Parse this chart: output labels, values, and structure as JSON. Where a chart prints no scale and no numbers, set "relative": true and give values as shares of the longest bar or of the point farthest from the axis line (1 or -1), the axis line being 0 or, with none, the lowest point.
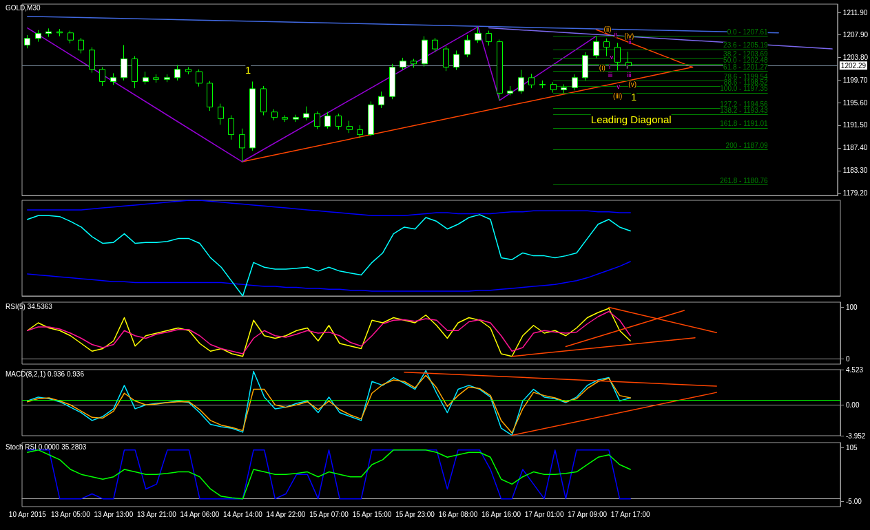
{
  "chart_data": [
    {
      "type": "candlestick",
      "title": "GOLD,M30",
      "tick_labels": "y",
      "ylim": [
        1178.8,
        1213.4
      ],
      "yticks": [
        {
          "value": 1179.2,
          "label": "1179.20"
        },
        {
          "value": 1183.3,
          "label": "1183.30"
        },
        {
          "value": 1187.4,
          "label": "1187.40"
        },
        {
          "value": 1191.5,
          "label": "1191.50"
        },
        {
          "value": 1195.6,
          "label": "1195.60"
        },
        {
          "value": 1199.7,
          "label": "1199.70"
        },
        {
          "value": 1203.8,
          "label": "1203.80"
        },
        {
          "value": 1207.9,
          "label": "1207.90"
        },
        {
          "value": 1211.9,
          "label": "1211.90"
        }
      ],
      "ohlc": [
        [
          1206.0,
          1207.8,
          1205.4,
          1207.2
        ],
        [
          1207.2,
          1208.7,
          1206.6,
          1208.1
        ],
        [
          1208.1,
          1209.0,
          1207.5,
          1208.4
        ],
        [
          1208.4,
          1208.9,
          1207.6,
          1208.2
        ],
        [
          1208.2,
          1208.6,
          1206.3,
          1206.9
        ],
        [
          1206.9,
          1207.3,
          1204.5,
          1205.1
        ],
        [
          1205.1,
          1205.6,
          1201.0,
          1201.6
        ],
        [
          1201.6,
          1202.0,
          1198.6,
          1199.4
        ],
        [
          1199.4,
          1200.9,
          1198.8,
          1200.1
        ],
        [
          1200.1,
          1206.0,
          1199.6,
          1203.5
        ],
        [
          1203.5,
          1204.0,
          1198.2,
          1199.4
        ],
        [
          1199.4,
          1201.2,
          1198.9,
          1200.1
        ],
        [
          1200.1,
          1200.7,
          1199.2,
          1199.8
        ],
        [
          1199.8,
          1200.7,
          1199.3,
          1200.1
        ],
        [
          1200.1,
          1202.4,
          1199.6,
          1201.6
        ],
        [
          1201.6,
          1202.0,
          1200.7,
          1201.2
        ],
        [
          1201.2,
          1201.6,
          1198.5,
          1199.1
        ],
        [
          1199.1,
          1199.5,
          1194.1,
          1194.8
        ],
        [
          1194.8,
          1195.4,
          1191.6,
          1192.7
        ],
        [
          1192.7,
          1193.3,
          1188.9,
          1189.8
        ],
        [
          1189.8,
          1190.9,
          1184.9,
          1187.4
        ],
        [
          1187.4,
          1199.4,
          1186.9,
          1198.1
        ],
        [
          1198.1,
          1198.6,
          1193.3,
          1193.9
        ],
        [
          1193.9,
          1194.4,
          1192.4,
          1192.9
        ],
        [
          1192.9,
          1193.3,
          1192.1,
          1192.6
        ],
        [
          1192.6,
          1193.4,
          1192.1,
          1192.9
        ],
        [
          1192.9,
          1194.9,
          1192.4,
          1193.6
        ],
        [
          1193.6,
          1194.0,
          1190.8,
          1191.3
        ],
        [
          1191.3,
          1193.9,
          1190.9,
          1193.2
        ],
        [
          1193.2,
          1193.6,
          1190.7,
          1191.3
        ],
        [
          1191.3,
          1192.3,
          1190.1,
          1190.7
        ],
        [
          1190.7,
          1191.5,
          1189.2,
          1189.8
        ],
        [
          1189.8,
          1195.8,
          1189.5,
          1195.2
        ],
        [
          1195.2,
          1197.6,
          1194.6,
          1196.7
        ],
        [
          1196.7,
          1202.6,
          1196.2,
          1202.0
        ],
        [
          1202.0,
          1203.7,
          1201.5,
          1203.1
        ],
        [
          1203.1,
          1203.5,
          1201.9,
          1202.6
        ],
        [
          1202.6,
          1207.6,
          1202.1,
          1206.9
        ],
        [
          1206.9,
          1207.3,
          1204.7,
          1205.3
        ],
        [
          1205.3,
          1205.8,
          1201.3,
          1202.0
        ],
        [
          1202.0,
          1205.0,
          1201.5,
          1204.3
        ],
        [
          1204.3,
          1207.8,
          1203.8,
          1206.9
        ],
        [
          1206.9,
          1209.3,
          1206.4,
          1208.1
        ],
        [
          1208.1,
          1208.6,
          1205.9,
          1206.6
        ],
        [
          1206.6,
          1207.0,
          1196.0,
          1197.3
        ],
        [
          1197.3,
          1198.6,
          1196.9,
          1197.7
        ],
        [
          1197.7,
          1201.5,
          1197.2,
          1200.1
        ],
        [
          1200.1,
          1200.8,
          1198.2,
          1198.8
        ],
        [
          1198.8,
          1199.6,
          1198.2,
          1198.9
        ],
        [
          1198.9,
          1199.3,
          1197.4,
          1197.9
        ],
        [
          1197.9,
          1198.9,
          1197.3,
          1198.3
        ],
        [
          1198.3,
          1200.7,
          1197.8,
          1200.1
        ],
        [
          1200.1,
          1204.7,
          1199.6,
          1204.1
        ],
        [
          1204.1,
          1207.6,
          1203.6,
          1206.6
        ],
        [
          1206.6,
          1207.2,
          1204.0,
          1205.6
        ],
        [
          1205.6,
          1206.4,
          1201.4,
          1202.9
        ],
        [
          1202.9,
          1204.8,
          1201.8,
          1202.3
        ],
        null,
        null,
        null,
        null,
        null,
        null,
        null,
        null,
        null,
        null,
        null,
        null,
        null,
        null,
        null,
        null,
        null,
        null,
        null
      ],
      "series": [
        {
          "type": "line",
          "color": "#ff4500",
          "values": [
            null,
            null,
            null,
            null,
            null,
            null,
            null,
            null,
            null,
            null,
            null,
            null,
            null,
            null,
            null,
            null,
            null,
            null,
            null,
            null,
            1184.9,
            null,
            null,
            null,
            null,
            null,
            null,
            null,
            null,
            null,
            null,
            null,
            null,
            null,
            null,
            null,
            null,
            null,
            null,
            null,
            null,
            null,
            null,
            null,
            null,
            null,
            null,
            null,
            null,
            null,
            null,
            null,
            null,
            null,
            null,
            null,
            null,
            null,
            null,
            null,
            null,
            null,
            1202.0,
            null,
            null,
            null,
            null,
            null,
            null,
            null,
            null,
            null,
            null,
            null,
            null,
            null
          ]
        },
        {
          "type": "line",
          "color": "#ff4500",
          "values": [
            null,
            null,
            null,
            null,
            null,
            null,
            null,
            null,
            null,
            null,
            null,
            null,
            null,
            null,
            null,
            null,
            null,
            null,
            null,
            null,
            null,
            null,
            null,
            null,
            null,
            null,
            null,
            null,
            null,
            null,
            null,
            null,
            null,
            null,
            null,
            null,
            null,
            null,
            null,
            null,
            null,
            null,
            null,
            null,
            null,
            null,
            null,
            null,
            null,
            null,
            null,
            null,
            null,
            1208.8,
            null,
            null,
            null,
            null,
            null,
            null,
            null,
            null,
            1202.0,
            null,
            null,
            null,
            null,
            null,
            null,
            null,
            null,
            null,
            null,
            null,
            null,
            null
          ]
        },
        {
          "type": "line",
          "color": "#4169e1",
          "values": [
            1211.2,
            null,
            null,
            null,
            null,
            null,
            null,
            null,
            null,
            null,
            null,
            null,
            null,
            null,
            null,
            null,
            null,
            null,
            null,
            null,
            null,
            null,
            null,
            null,
            null,
            null,
            null,
            null,
            null,
            null,
            null,
            null,
            null,
            null,
            null,
            null,
            null,
            null,
            null,
            null,
            null,
            null,
            null,
            null,
            null,
            null,
            null,
            null,
            null,
            null,
            null,
            null,
            null,
            null,
            null,
            null,
            null,
            null,
            null,
            null,
            null,
            null,
            null,
            null,
            null,
            null,
            null,
            null,
            null,
            null,
            1208.2,
            null,
            null,
            null,
            null,
            null
          ]
        },
        {
          "type": "line",
          "color": "#7b68ee",
          "values": [
            null,
            null,
            null,
            null,
            null,
            null,
            null,
            null,
            null,
            null,
            null,
            null,
            null,
            null,
            null,
            null,
            null,
            null,
            null,
            null,
            null,
            null,
            null,
            null,
            null,
            null,
            null,
            null,
            null,
            null,
            null,
            null,
            null,
            null,
            null,
            null,
            null,
            null,
            null,
            null,
            null,
            null,
            null,
            1209.1,
            null,
            null,
            null,
            null,
            null,
            null,
            null,
            null,
            null,
            null,
            null,
            null,
            null,
            null,
            null,
            null,
            null,
            null,
            null,
            null,
            null,
            null,
            null,
            null,
            null,
            null,
            null,
            null,
            null,
            null,
            null,
            1205.3
          ]
        },
        {
          "type": "line",
          "color": "#9400d3",
          "values": [
            1209.1,
            null,
            null,
            null,
            null,
            null,
            null,
            null,
            null,
            null,
            null,
            null,
            null,
            null,
            null,
            null,
            null,
            null,
            null,
            null,
            1184.9,
            null,
            null,
            null,
            null,
            null,
            null,
            null,
            null,
            null,
            null,
            null,
            null,
            null,
            null,
            null,
            null,
            null,
            null,
            null,
            null,
            null,
            1209.3,
            null,
            1196.0,
            null,
            null,
            null,
            null,
            null,
            null,
            null,
            null,
            1207.6,
            null,
            null,
            null,
            null,
            null,
            null,
            null,
            null,
            null,
            null,
            null,
            null,
            null,
            null,
            null,
            null,
            null,
            null,
            null,
            null,
            null,
            null
          ]
        }
      ],
      "ref_lines": [
        {
          "axis": "y",
          "value": 1202.29,
          "label": "1202.29",
          "color": "#708090"
        },
        {
          "axis": "y",
          "value": 1207.61,
          "color": "#008000"
        },
        {
          "axis": "y",
          "value": 1205.19,
          "color": "#008000"
        },
        {
          "axis": "y",
          "value": 1203.69,
          "color": "#008000"
        },
        {
          "axis": "y",
          "value": 1202.48,
          "color": "#008000"
        },
        {
          "axis": "y",
          "value": 1201.27,
          "color": "#008000"
        },
        {
          "axis": "y",
          "value": 1199.54,
          "color": "#008000"
        },
        {
          "axis": "y",
          "value": 1198.52,
          "color": "#008000"
        },
        {
          "axis": "y",
          "value": 1197.35,
          "color": "#008000"
        },
        {
          "axis": "y",
          "value": 1194.56,
          "color": "#008000"
        },
        {
          "axis": "y",
          "value": 1193.43,
          "color": "#008000"
        },
        {
          "axis": "y",
          "value": 1191.01,
          "color": "#008000"
        },
        {
          "axis": "y",
          "value": 1187.09,
          "color": "#008000"
        },
        {
          "axis": "y",
          "value": 1180.76,
          "color": "#008000"
        }
      ],
      "annotations": [
        "1",
        {
          "text": "(i)",
          "y": 1201.9
        },
        {
          "text": "(ii)",
          "y": 1208.8
        },
        {
          "text": "(iii)",
          "y": 1196.8
        },
        {
          "text": "(iv)",
          "y": 1207.6
        },
        {
          "text": "(v)",
          "y": 1198.9
        },
        "1",
        "Leading Diagonal",
        {
          "text": "ii",
          "y": 1207.9
        },
        {
          "text": "ii",
          "y": 1206.6
        },
        {
          "text": "v",
          "y": 1203.8
        },
        {
          "text": "i",
          "y": 1202.1
        },
        {
          "text": "i",
          "y": 1202.1
        },
        "iii",
        "iii",
        {
          "text": "v",
          "y": 1198.5
        },
        {
          "text": "0.0 - 1207.61",
          "y": 1207.61
        },
        {
          "text": "23.6 - 1205.19",
          "y": 1205.19
        },
        {
          "text": "38.2 - 1203.69",
          "y": 1203.69
        },
        {
          "text": "50.0 - 1202.48",
          "y": 1202.48
        },
        {
          "text": "61.8 - 1201.27",
          "y": 1201.27
        },
        {
          "text": "78.6 - 1199.54",
          "y": 1199.54
        },
        {
          "text": "88.6 - 1198.52",
          "y": 1198.52
        },
        {
          "text": "100.0 - 1197.35",
          "y": 1197.35
        },
        {
          "text": "127.2 - 1194.56",
          "y": 1194.56
        },
        {
          "text": "138.2 - 1193.43",
          "y": 1193.43
        },
        {
          "text": "161.8 - 1191.01",
          "y": 1191.01
        },
        {
          "text": "200 - 1187.09",
          "y": 1187.09
        },
        {
          "text": "261.8 - 1180.76",
          "y": 1180.76
        }
      ]
    },
    {
      "type": "line",
      "relative": true,
      "tick_labels": false,
      "series": [
        {
          "color": "#0000ff",
          "values": [
            0.9,
            0.9,
            0.9,
            0.9,
            0.9,
            0.9,
            0.91,
            0.92,
            0.93,
            0.94,
            0.95,
            0.96,
            0.97,
            0.98,
            0.99,
            1,
            1,
            0.99,
            0.98,
            0.97,
            0.96,
            0.95,
            0.94,
            0.93,
            0.92,
            0.91,
            0.9,
            0.89,
            0.88,
            0.87,
            0.86,
            0.85,
            0.84,
            0.84,
            0.84,
            0.84,
            0.85,
            0.86,
            0.87,
            0.87,
            0.86,
            0.86,
            0.86,
            0.86,
            0.87,
            0.88,
            0.88,
            0.89,
            0.89,
            0.89,
            0.89,
            0.89,
            0.89,
            0.88,
            0.88,
            0.87,
            0.87,
            null,
            null,
            null,
            null,
            null,
            null,
            null,
            null,
            null,
            null,
            null,
            null,
            null,
            null,
            null,
            null,
            null,
            null,
            null
          ]
        },
        {
          "color": "#0000ff",
          "values": [
            0.23,
            0.22,
            0.21,
            0.2,
            0.19,
            0.18,
            0.17,
            0.16,
            0.15,
            0.15,
            0.14,
            0.14,
            0.14,
            0.14,
            0.14,
            0.14,
            0.14,
            0.14,
            0.14,
            0.13,
            0.12,
            0.11,
            0.1,
            0.1,
            0.09,
            0.09,
            0.08,
            0.08,
            0.07,
            0.07,
            0.06,
            0.06,
            0.05,
            0.05,
            0.05,
            0.05,
            0.05,
            0.05,
            0.05,
            0.05,
            0.05,
            0.05,
            0.06,
            0.06,
            0.07,
            0.08,
            0.09,
            0.1,
            0.11,
            0.12,
            0.14,
            0.16,
            0.19,
            0.23,
            0.27,
            0.31,
            0.36,
            null,
            null,
            null,
            null,
            null,
            null,
            null,
            null,
            null,
            null,
            null,
            null,
            null,
            null,
            null,
            null,
            null,
            null,
            null
          ]
        },
        {
          "color": "#00ffff",
          "values": [
            0.8,
            0.84,
            0.84,
            0.83,
            0.78,
            0.72,
            0.62,
            0.55,
            0.56,
            0.65,
            0.55,
            0.56,
            0.56,
            0.57,
            0.6,
            0.6,
            0.55,
            0.4,
            0.3,
            0.15,
            0,
            0.35,
            0.3,
            0.28,
            0.28,
            0.29,
            0.3,
            0.26,
            0.3,
            0.26,
            0.24,
            0.22,
            0.35,
            0.45,
            0.65,
            0.72,
            0.7,
            0.82,
            0.78,
            0.7,
            0.75,
            0.82,
            0.85,
            0.8,
            0.4,
            0.38,
            0.45,
            0.42,
            0.42,
            0.4,
            0.42,
            0.45,
            0.6,
            0.75,
            0.8,
            0.72,
            0.68,
            null,
            null,
            null,
            null,
            null,
            null,
            null,
            null,
            null,
            null,
            null,
            null,
            null,
            null,
            null,
            null,
            null,
            null,
            null
          ]
        }
      ]
    },
    {
      "type": "line",
      "title": "RSI(5) 34.5363",
      "tick_labels": "y",
      "ylim": [
        -10,
        110
      ],
      "yticks": [
        0,
        100
      ],
      "series": [
        {
          "color": "#ffff00",
          "values": [
            55,
            70,
            60,
            55,
            45,
            30,
            15,
            20,
            35,
            80,
            25,
            45,
            50,
            55,
            60,
            55,
            30,
            15,
            20,
            10,
            5,
            75,
            45,
            40,
            45,
            55,
            60,
            35,
            65,
            30,
            25,
            20,
            75,
            70,
            80,
            75,
            70,
            85,
            65,
            40,
            70,
            80,
            75,
            60,
            10,
            5,
            45,
            65,
            50,
            55,
            45,
            60,
            80,
            90,
            98,
            55,
            35,
            null,
            null,
            null,
            null,
            null,
            null,
            null,
            null,
            null,
            null,
            null,
            null,
            null,
            null,
            null,
            null,
            null,
            null,
            null
          ]
        },
        {
          "color": "#ff1493",
          "values": [
            55,
            62,
            62,
            58,
            50,
            40,
            28,
            22,
            28,
            55,
            45,
            40,
            48,
            52,
            57,
            57,
            45,
            28,
            20,
            15,
            10,
            40,
            55,
            45,
            42,
            48,
            55,
            50,
            52,
            45,
            32,
            25,
            45,
            68,
            75,
            76,
            73,
            78,
            75,
            55,
            55,
            72,
            76,
            70,
            45,
            15,
            22,
            50,
            55,
            52,
            50,
            52,
            68,
            82,
            92,
            75,
            45,
            null,
            null,
            null,
            null,
            null,
            null,
            null,
            null,
            null,
            null,
            null,
            null,
            null,
            null,
            null,
            null,
            null,
            null,
            null
          ]
        },
        {
          "color": "#ff4500",
          "values": [
            null,
            null,
            null,
            null,
            null,
            null,
            null,
            null,
            null,
            null,
            null,
            null,
            null,
            null,
            null,
            null,
            null,
            null,
            null,
            null,
            null,
            null,
            null,
            null,
            null,
            null,
            null,
            null,
            null,
            null,
            null,
            null,
            null,
            null,
            null,
            null,
            null,
            null,
            null,
            null,
            null,
            null,
            null,
            null,
            null,
            5,
            null,
            null,
            null,
            null,
            null,
            null,
            null,
            null,
            null,
            null,
            null,
            null,
            null,
            null,
            null,
            null,
            41,
            null,
            null,
            null,
            null,
            null,
            null,
            null,
            null,
            null,
            null,
            null,
            null,
            null
          ]
        },
        {
          "color": "#ff4500",
          "values": [
            null,
            null,
            null,
            null,
            null,
            null,
            null,
            null,
            null,
            null,
            null,
            null,
            null,
            null,
            null,
            null,
            null,
            null,
            null,
            null,
            null,
            null,
            null,
            null,
            null,
            null,
            null,
            null,
            null,
            null,
            null,
            null,
            null,
            null,
            null,
            null,
            null,
            null,
            null,
            null,
            null,
            null,
            null,
            null,
            null,
            null,
            null,
            null,
            null,
            null,
            24,
            null,
            null,
            null,
            null,
            null,
            null,
            null,
            null,
            null,
            null,
            94,
            null,
            null,
            null,
            null,
            null,
            null,
            null,
            null,
            null,
            null,
            null,
            null,
            null,
            null
          ]
        },
        {
          "color": "#ff4500",
          "values": [
            null,
            null,
            null,
            null,
            null,
            null,
            null,
            null,
            null,
            null,
            null,
            null,
            null,
            null,
            null,
            null,
            null,
            null,
            null,
            null,
            null,
            null,
            null,
            null,
            null,
            null,
            null,
            null,
            null,
            null,
            null,
            null,
            null,
            null,
            null,
            null,
            null,
            null,
            null,
            null,
            null,
            null,
            null,
            null,
            null,
            null,
            null,
            null,
            null,
            null,
            null,
            null,
            null,
            null,
            100,
            null,
            null,
            null,
            null,
            null,
            null,
            null,
            null,
            null,
            51,
            null,
            null,
            null,
            null,
            null,
            null,
            null,
            null,
            null,
            null,
            null
          ]
        }
      ]
    },
    {
      "type": "line",
      "title": "MACD(8,2,1) 0.936 0.936",
      "tick_labels": "y",
      "ylim": [
        -3.952,
        4.523
      ],
      "yticks": [
        -3.952,
        {
          "value": 0,
          "label": "0.00"
        },
        4.523
      ],
      "ref_lines": [
        {
          "axis": "y",
          "value": 0.6,
          "color": "#00ff00"
        }
      ],
      "series": [
        {
          "color": "#00e5ff",
          "values": [
            0.5,
            1,
            0.8,
            0.4,
            -0.3,
            -1,
            -2,
            -1.5,
            -0.5,
            2.5,
            -0.5,
            0,
            0.2,
            0.3,
            0.5,
            0.3,
            -1,
            -2.5,
            -2.8,
            -3,
            -3.5,
            4.3,
            1,
            -0.5,
            -0.3,
            0.2,
            0.5,
            -1,
            1,
            -1,
            -1.5,
            -2,
            3,
            2.5,
            3.5,
            2.8,
            2,
            4.4,
            1.5,
            -1,
            2,
            2.5,
            2,
            1,
            -3,
            -3.9,
            0.5,
            2,
            1,
            0.8,
            0.3,
            1,
            2.5,
            3.2,
            3.5,
            0.5,
            0.9,
            null,
            null,
            null,
            null,
            null,
            null,
            null,
            null,
            null,
            null,
            null,
            null,
            null,
            null,
            null,
            null,
            null,
            null,
            null
          ]
        },
        {
          "color": "#ffa500",
          "values": [
            0.4,
            0.8,
            0.9,
            0.5,
            0,
            -0.8,
            -1.6,
            -1.7,
            -0.8,
            1.5,
            0.5,
            0,
            0.1,
            0.3,
            0.4,
            0.4,
            -0.6,
            -2,
            -2.6,
            -2.9,
            -3.3,
            2,
            2,
            0,
            -0.3,
            0,
            0.4,
            -0.6,
            0.5,
            -0.6,
            -1.3,
            -1.8,
            1.5,
            2.6,
            3.2,
            3,
            2.2,
            3.8,
            2.2,
            -0.2,
            1.2,
            2.3,
            2.1,
            1.2,
            -2,
            -3.6,
            -0.5,
            1.6,
            1.2,
            0.9,
            0.4,
            0.8,
            2.1,
            3,
            3.4,
            1.2,
            0.9,
            null,
            null,
            null,
            null,
            null,
            null,
            null,
            null,
            null,
            null,
            null,
            null,
            null,
            null,
            null,
            null,
            null,
            null,
            null
          ]
        },
        {
          "color": "#ff4500",
          "values": [
            null,
            null,
            null,
            null,
            null,
            null,
            null,
            null,
            null,
            null,
            null,
            null,
            null,
            null,
            null,
            null,
            null,
            null,
            null,
            null,
            null,
            null,
            null,
            null,
            null,
            null,
            null,
            null,
            null,
            null,
            null,
            null,
            null,
            null,
            null,
            4.2,
            null,
            null,
            null,
            null,
            null,
            null,
            null,
            null,
            null,
            null,
            null,
            null,
            null,
            null,
            null,
            null,
            null,
            null,
            null,
            null,
            null,
            null,
            null,
            null,
            null,
            null,
            null,
            null,
            2.4,
            null,
            null,
            null,
            null,
            null,
            null,
            null,
            null,
            null,
            null,
            null
          ]
        },
        {
          "color": "#ff4500",
          "values": [
            null,
            null,
            null,
            null,
            null,
            null,
            null,
            null,
            null,
            null,
            null,
            null,
            null,
            null,
            null,
            null,
            null,
            null,
            null,
            null,
            null,
            null,
            null,
            null,
            null,
            null,
            null,
            null,
            null,
            null,
            null,
            null,
            null,
            null,
            null,
            null,
            null,
            null,
            null,
            null,
            null,
            null,
            null,
            null,
            null,
            -3.9,
            null,
            null,
            null,
            null,
            null,
            null,
            null,
            null,
            null,
            null,
            null,
            null,
            null,
            null,
            null,
            null,
            null,
            null,
            1.6,
            null,
            null,
            null,
            null,
            null,
            null,
            null,
            null,
            null,
            null,
            null
          ]
        }
      ]
    },
    {
      "type": "line",
      "title": "Stoch RSI 0.0000 35.2803",
      "ylim": [
        -16,
        115
      ],
      "yticks": [
        {
          "value": -5,
          "label": "-5.00"
        },
        105
      ],
      "categories": [
        "10 Apr 2015",
        null,
        null,
        null,
        "13 Apr 05:00",
        null,
        null,
        null,
        "13 Apr 13:00",
        null,
        null,
        null,
        "13 Apr 21:00",
        null,
        null,
        null,
        "14 Apr 06:00",
        null,
        null,
        null,
        "14 Apr 14:00",
        null,
        null,
        null,
        "14 Apr 22:00",
        null,
        null,
        null,
        "15 Apr 07:00",
        null,
        null,
        null,
        "15 Apr 15:00",
        null,
        null,
        null,
        "15 Apr 23:00",
        null,
        null,
        null,
        "16 Apr 08:00",
        null,
        null,
        null,
        "16 Apr 16:00",
        null,
        null,
        null,
        "17 Apr 01:00",
        null,
        null,
        null,
        "17 Apr 09:00",
        null,
        null,
        null,
        "17 Apr 17:00",
        null,
        null,
        null,
        null,
        null,
        null,
        null,
        null,
        null,
        null,
        null,
        null,
        null,
        null,
        null,
        null,
        null,
        null,
        null
      ],
      "series": [
        {
          "color": "#0000ff",
          "values": [
            100,
            100,
            100,
            0,
            0,
            0,
            10,
            0,
            0,
            100,
            100,
            20,
            30,
            100,
            100,
            100,
            0,
            0,
            0,
            0,
            0,
            100,
            100,
            0,
            10,
            50,
            50,
            0,
            100,
            0,
            0,
            0,
            100,
            100,
            100,
            100,
            100,
            100,
            100,
            20,
            100,
            100,
            100,
            60,
            0,
            0,
            60,
            30,
            0,
            100,
            0,
            100,
            100,
            100,
            100,
            0,
            0,
            null,
            null,
            null,
            null,
            null,
            null,
            null,
            null,
            null,
            null,
            null,
            null,
            null,
            null,
            null,
            null,
            null,
            null,
            null
          ]
        },
        {
          "color": "#00ff00",
          "values": [
            95,
            100,
            90,
            80,
            60,
            50,
            45,
            40,
            45,
            60,
            55,
            50,
            50,
            52,
            55,
            55,
            45,
            20,
            5,
            2,
            0,
            60,
            55,
            50,
            50,
            52,
            55,
            45,
            55,
            50,
            45,
            45,
            70,
            80,
            100,
            100,
            100,
            100,
            95,
            85,
            90,
            95,
            95,
            85,
            40,
            30,
            45,
            55,
            50,
            50,
            52,
            55,
            70,
            85,
            90,
            70,
            60,
            null,
            null,
            null,
            null,
            null,
            null,
            null,
            null,
            null,
            null,
            null,
            null,
            null,
            null,
            null,
            null,
            null,
            null,
            null
          ]
        }
      ]
    }
  ]
}
